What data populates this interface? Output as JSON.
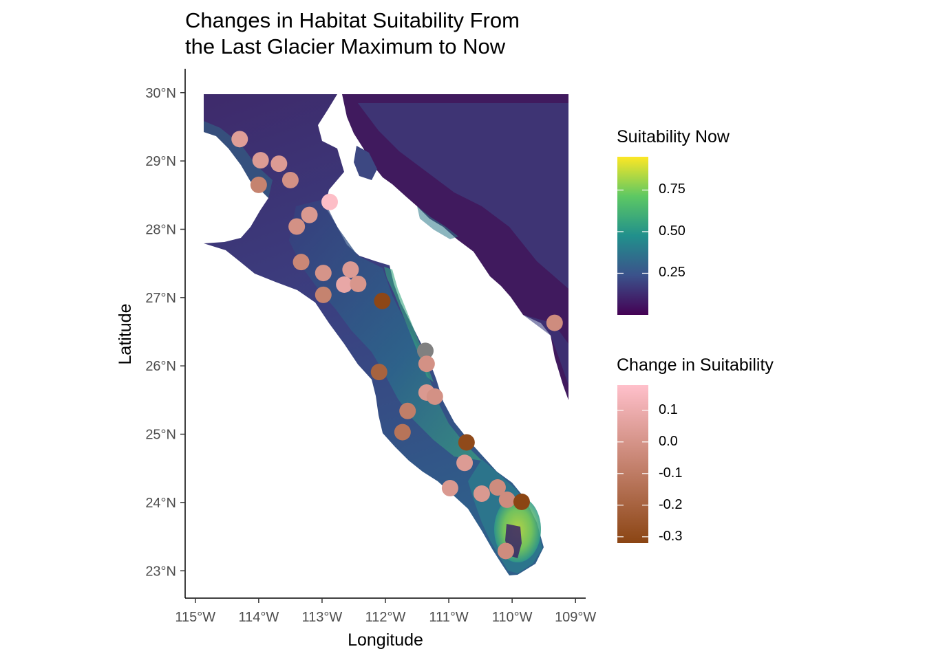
{
  "title_lines": [
    "Changes in Habitat Suitability From",
    "the Last Glacier Maximum to Now"
  ],
  "axes": {
    "xlabel": "Longitude",
    "ylabel": "Latitude",
    "x_ticks": [
      {
        "value": -115,
        "label": "115°W"
      },
      {
        "value": -114,
        "label": "114°W"
      },
      {
        "value": -113,
        "label": "113°W"
      },
      {
        "value": -112,
        "label": "112°W"
      },
      {
        "value": -111,
        "label": "111°W"
      },
      {
        "value": -110,
        "label": "110°W"
      },
      {
        "value": -109,
        "label": "109°W"
      }
    ],
    "y_ticks": [
      {
        "value": 30,
        "label": "30°N"
      },
      {
        "value": 29,
        "label": "29°N"
      },
      {
        "value": 28,
        "label": "28°N"
      },
      {
        "value": 27,
        "label": "27°N"
      },
      {
        "value": 26,
        "label": "26°N"
      },
      {
        "value": 25,
        "label": "25°N"
      },
      {
        "value": 24,
        "label": "24°N"
      },
      {
        "value": 23,
        "label": "23°N"
      }
    ]
  },
  "legend_now": {
    "title": "Suitability Now",
    "ticks": [
      "0.75",
      "0.50",
      "0.25"
    ],
    "tick_values": [
      0.75,
      0.5,
      0.25
    ],
    "range": [
      0.0,
      0.95
    ],
    "colors": [
      "#440154",
      "#3b528b",
      "#21908c",
      "#5dc863",
      "#fde725"
    ]
  },
  "legend_change": {
    "title": "Change in Suitability",
    "ticks": [
      "0.1",
      "0.0",
      "-0.1",
      "-0.2",
      "-0.3"
    ],
    "tick_values": [
      0.1,
      0.0,
      -0.1,
      -0.2,
      -0.3
    ],
    "range": [
      -0.32,
      0.18
    ],
    "low_color": "#8b4513",
    "high_color": "#ffc0cb",
    "na_color": "#808080"
  },
  "chart_data": {
    "type": "scatter",
    "xlim": [
      -115.15,
      -108.85
    ],
    "ylim": [
      22.6,
      30.35
    ],
    "raster_layer": "Suitability Now",
    "point_layer": "Change in Suitability",
    "points": [
      {
        "lon": -114.3,
        "lat": 29.32,
        "change": 0.04
      },
      {
        "lon": -113.97,
        "lat": 29.01,
        "change": 0.03
      },
      {
        "lon": -113.68,
        "lat": 28.96,
        "change": 0.03
      },
      {
        "lon": -114.0,
        "lat": 28.65,
        "change": -0.07
      },
      {
        "lon": -113.5,
        "lat": 28.72,
        "change": -0.01
      },
      {
        "lon": -112.88,
        "lat": 28.4,
        "change": 0.17
      },
      {
        "lon": -113.2,
        "lat": 28.21,
        "change": 0.02
      },
      {
        "lon": -113.4,
        "lat": 28.04,
        "change": -0.01
      },
      {
        "lon": -113.33,
        "lat": 27.52,
        "change": -0.05
      },
      {
        "lon": -112.98,
        "lat": 27.36,
        "change": 0.0
      },
      {
        "lon": -112.55,
        "lat": 27.41,
        "change": 0.03
      },
      {
        "lon": -112.65,
        "lat": 27.19,
        "change": 0.08
      },
      {
        "lon": -112.43,
        "lat": 27.2,
        "change": 0.01
      },
      {
        "lon": -112.98,
        "lat": 27.04,
        "change": -0.07
      },
      {
        "lon": -112.05,
        "lat": 26.95,
        "change": -0.31
      },
      {
        "lon": -109.33,
        "lat": 26.63,
        "change": -0.03
      },
      {
        "lon": -111.37,
        "lat": 26.22,
        "change": null
      },
      {
        "lon": -111.35,
        "lat": 26.03,
        "change": -0.01
      },
      {
        "lon": -112.1,
        "lat": 25.91,
        "change": -0.2
      },
      {
        "lon": -111.35,
        "lat": 25.61,
        "change": 0.02
      },
      {
        "lon": -111.22,
        "lat": 25.55,
        "change": -0.01
      },
      {
        "lon": -111.65,
        "lat": 25.34,
        "change": -0.09
      },
      {
        "lon": -111.73,
        "lat": 25.03,
        "change": -0.13
      },
      {
        "lon": -110.72,
        "lat": 24.88,
        "change": -0.3
      },
      {
        "lon": -110.75,
        "lat": 24.58,
        "change": 0.03
      },
      {
        "lon": -110.98,
        "lat": 24.21,
        "change": 0.02
      },
      {
        "lon": -110.48,
        "lat": 24.13,
        "change": 0.02
      },
      {
        "lon": -110.23,
        "lat": 24.22,
        "change": -0.03
      },
      {
        "lon": -110.08,
        "lat": 24.04,
        "change": -0.03
      },
      {
        "lon": -109.85,
        "lat": 24.01,
        "change": -0.32
      },
      {
        "lon": -110.1,
        "lat": 23.29,
        "change": -0.03
      }
    ]
  }
}
